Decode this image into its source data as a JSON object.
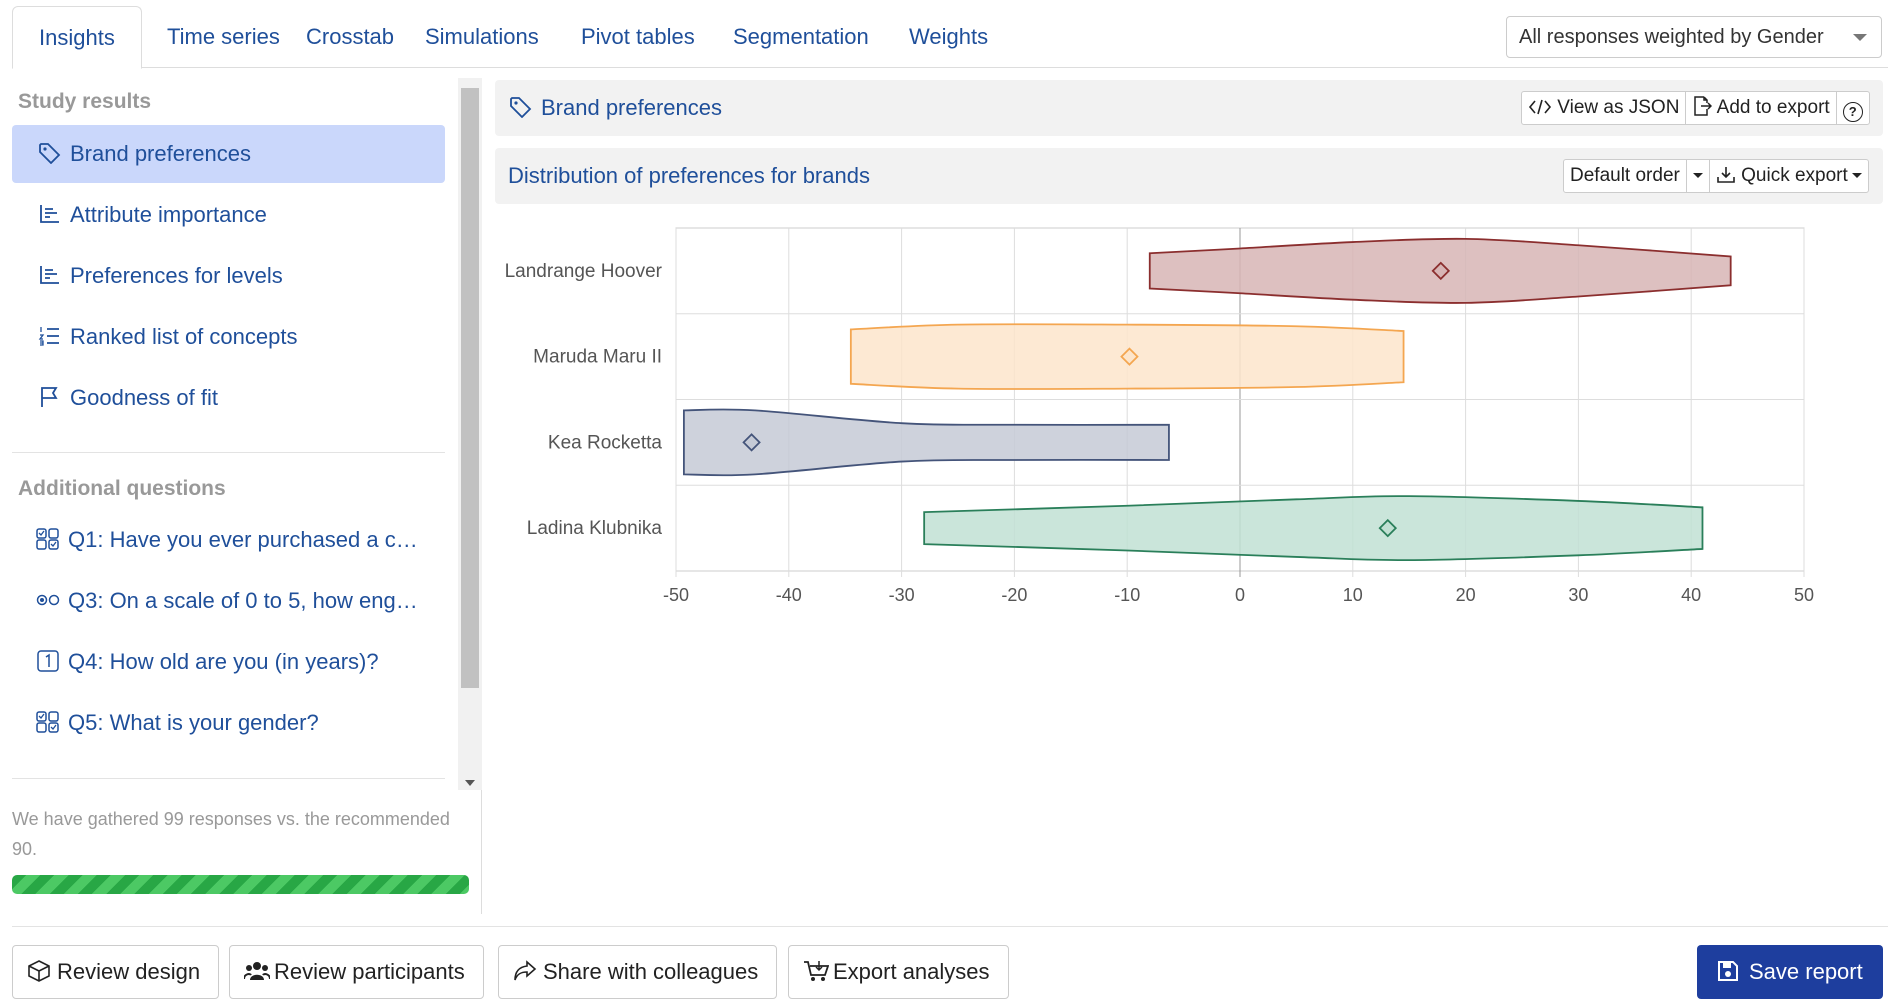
{
  "tabs": [
    "Insights",
    "Time series",
    "Crosstab",
    "Simulations",
    "Pivot tables",
    "Segmentation",
    "Weights"
  ],
  "weight_select": "All responses weighted by Gender",
  "sidebar": {
    "study_heading": "Study results",
    "study_items": [
      {
        "label": "Brand preferences",
        "icon": "tag-icon"
      },
      {
        "label": "Attribute importance",
        "icon": "bar-chart-icon"
      },
      {
        "label": "Preferences for levels",
        "icon": "bar-chart-icon"
      },
      {
        "label": "Ranked list of concepts",
        "icon": "list-ol-icon"
      },
      {
        "label": "Goodness of fit",
        "icon": "flag-icon"
      }
    ],
    "additional_heading": "Additional questions",
    "additional_items": [
      {
        "label": "Q1: Have you ever purchased a c…",
        "icon": "ui-checks-grid-icon"
      },
      {
        "label": "Q3: On a scale of 0 to 5, how eng…",
        "icon": "ui-radios-icon"
      },
      {
        "label": "Q4: How old are you (in years)?",
        "icon": "number-icon"
      },
      {
        "label": "Q5: What is your gender?",
        "icon": "ui-checks-grid-icon"
      }
    ],
    "responses_note": "We have gathered 99 responses vs. the recommended 90.",
    "progress_fraction": 1.0
  },
  "panel": {
    "title": "Brand preferences",
    "view_json": "View as JSON",
    "add_export": "Add to export",
    "help": "?"
  },
  "subpanel": {
    "title": "Distribution of preferences for brands",
    "order": "Default order",
    "quick_export": "Quick export"
  },
  "chart_data": {
    "type": "violin",
    "orientation": "horizontal",
    "xlim": [
      -50,
      50
    ],
    "xticks": [
      -50,
      -40,
      -30,
      -20,
      -10,
      0,
      10,
      20,
      30,
      40,
      50
    ],
    "grid": true,
    "series": [
      {
        "name": "Landrange Hoover",
        "min": -8,
        "max": 43.5,
        "mean": 17.8,
        "color": "#8b2e2e",
        "fill": "#d7b5b5",
        "profile": [
          [
            -8,
            0.55
          ],
          [
            0,
            0.7
          ],
          [
            10,
            0.9
          ],
          [
            20,
            1.0
          ],
          [
            30,
            0.8
          ],
          [
            43.5,
            0.45
          ]
        ]
      },
      {
        "name": "Maruda Maru II",
        "min": -34.5,
        "max": 14.5,
        "mean": -9.8,
        "color": "#f4a650",
        "fill": "#fde5cb",
        "profile": [
          [
            -34.5,
            0.85
          ],
          [
            -25,
            1.0
          ],
          [
            -10,
            1.0
          ],
          [
            5,
            0.95
          ],
          [
            14.5,
            0.8
          ]
        ]
      },
      {
        "name": "Kea Rocketta",
        "min": -49.3,
        "max": -6.3,
        "mean": -43.3,
        "color": "#44547a",
        "fill": "#c5cad6",
        "profile": [
          [
            -49.3,
            1.0
          ],
          [
            -43,
            1.0
          ],
          [
            -30,
            0.6
          ],
          [
            -20,
            0.55
          ],
          [
            -6.3,
            0.55
          ]
        ]
      },
      {
        "name": "Ladina Klubnika",
        "min": -28,
        "max": 41,
        "mean": 13.1,
        "color": "#2a7f5a",
        "fill": "#c1e0d3",
        "profile": [
          [
            -28,
            0.5
          ],
          [
            -10,
            0.7
          ],
          [
            5,
            0.9
          ],
          [
            15,
            1.0
          ],
          [
            30,
            0.85
          ],
          [
            41,
            0.65
          ]
        ]
      }
    ]
  },
  "bottom": {
    "review_design": "Review design",
    "review_participants": "Review participants",
    "share": "Share with colleagues",
    "export": "Export analyses",
    "save": "Save report"
  }
}
